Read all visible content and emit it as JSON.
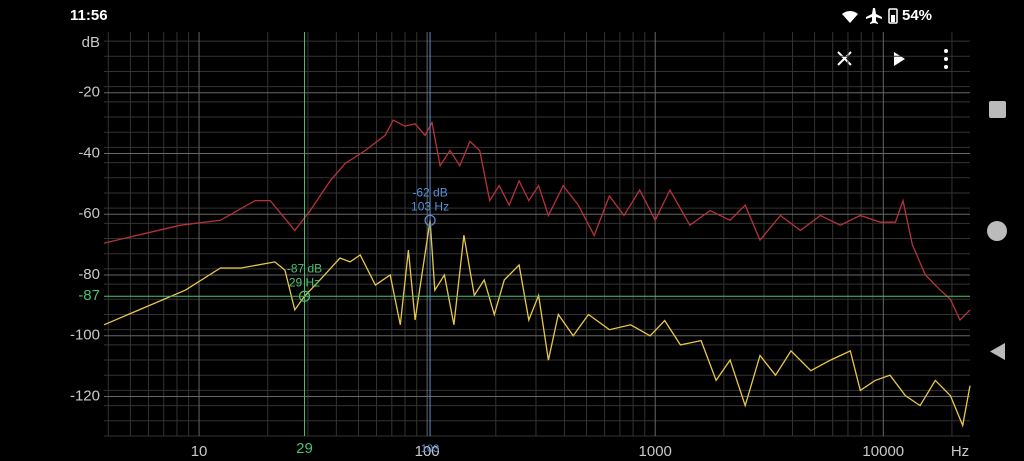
{
  "status_bar": {
    "time": "11:56",
    "battery": "54%"
  },
  "chart_data": {
    "type": "line",
    "x_label": "Hz",
    "y_label": "dB",
    "xscale": "log",
    "grid": true,
    "xlim": [
      3.83,
      24000
    ],
    "ylim": [
      -133,
      0
    ],
    "xticks": [
      10,
      100,
      1000,
      10000
    ],
    "yticks": [
      -120,
      -100,
      -80,
      -60,
      -40,
      -20
    ],
    "series": [
      {
        "color": "#b8323c",
        "x": [
          3.83,
          8.3,
          12.4,
          17.6,
          20.5,
          26.3,
          30.7,
          37.6,
          43.7,
          53.5,
          65.5,
          71,
          80,
          88.6,
          98,
          105,
          114,
          126,
          139,
          154,
          170,
          188,
          207,
          229,
          253,
          279,
          308,
          340,
          395,
          460,
          540,
          630,
          730,
          855,
          1000,
          1160,
          1420,
          1740,
          2130,
          2480,
          2880,
          3540,
          4330,
          5300,
          6480,
          7930,
          9700,
          11300,
          12200,
          13400,
          15300,
          17800,
          19700,
          21700,
          24000
        ],
        "values": [
          -69.5,
          -63.6,
          -62,
          -55.5,
          -55.5,
          -65.3,
          -58.8,
          -49,
          -43.3,
          -39,
          -34,
          -29,
          -31,
          -30.2,
          -34,
          -29.8,
          -44,
          -39,
          -44,
          -36,
          -39,
          -55.5,
          -50.6,
          -57,
          -49,
          -55.5,
          -50.6,
          -60.4,
          -50.6,
          -57,
          -67,
          -54,
          -60.4,
          -52,
          -62,
          -52,
          -63.6,
          -58.8,
          -62,
          -57,
          -68.5,
          -60.4,
          -65.3,
          -60.4,
          -63.6,
          -60.4,
          -62.6,
          -62.6,
          -55.5,
          -70,
          -80,
          -85,
          -88,
          -94.8,
          -91.5
        ]
      },
      {
        "color": "#e8c84a",
        "x": [
          3.83,
          8.7,
          12.4,
          15.3,
          21.5,
          23.8,
          26.3,
          29,
          33.9,
          41.5,
          45.9,
          50.9,
          59.3,
          68.9,
          76.3,
          82.8,
          88.6,
          103,
          108,
          119,
          131,
          145,
          161,
          178,
          197,
          218,
          253,
          279,
          308,
          340,
          376,
          437,
          510,
          630,
          780,
          950,
          1100,
          1290,
          1590,
          1850,
          2130,
          2480,
          2880,
          3370,
          3940,
          4810,
          5870,
          7170,
          7930,
          9220,
          10700,
          12500,
          14500,
          16900,
          19700,
          22300,
          24000
        ],
        "values": [
          -96.4,
          -85,
          -77.7,
          -77.7,
          -75.7,
          -78.4,
          -91.5,
          -87,
          -81.6,
          -74.4,
          -75.7,
          -73.4,
          -83.3,
          -80,
          -96.4,
          -71.8,
          -94.8,
          -62,
          -85,
          -80,
          -96.4,
          -66.9,
          -86.7,
          -81.6,
          -93,
          -81.6,
          -76.7,
          -94.8,
          -86.7,
          -108,
          -93,
          -100,
          -93,
          -98,
          -96.4,
          -100,
          -95,
          -103,
          -101.6,
          -114.7,
          -108,
          -123,
          -106.5,
          -113,
          -105,
          -111.5,
          -108,
          -105,
          -118,
          -114.7,
          -113,
          -119.7,
          -123,
          -114.7,
          -119.7,
          -129.5,
          -116.4
        ]
      }
    ],
    "cursors": [
      {
        "x": 29,
        "y": -87,
        "color": "#4fbf72",
        "horizontal_line": true,
        "db_label": "-87 dB",
        "hz_label": "29 Hz",
        "x_axis_label": "29",
        "y_axis_label": "-87"
      },
      {
        "x": 103,
        "y": -62,
        "color": "#5b8fd6",
        "horizontal_line": false,
        "db_label": "-62 dB",
        "hz_label": "103 Hz",
        "x_axis_label": "103"
      }
    ]
  }
}
